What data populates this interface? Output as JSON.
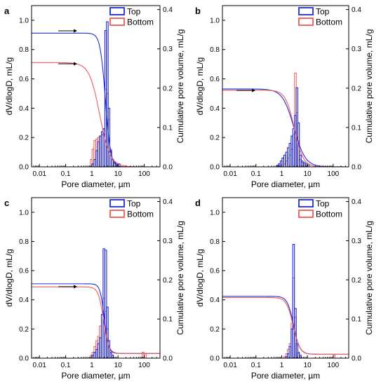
{
  "colors": {
    "top": "#1f2bd6",
    "bottom": "#ef5a5a"
  },
  "shared": {
    "xlabel": "Pore diameter, µm",
    "ylabel_left": "dV/dlogD, mL/g",
    "ylabel_right": "Cumulative pore volume, mL/g",
    "legend": [
      "Top",
      "Bottom"
    ],
    "x_ticks": [
      "0.01",
      "0.1",
      "1",
      "10",
      "100"
    ],
    "y_left_ticks": [
      "0.0",
      "0.2",
      "0.4",
      "0.6",
      "0.8",
      "1.0"
    ],
    "y_right_ticks": [
      "0.0",
      "0.1",
      "0.2",
      "0.3",
      "0.4"
    ]
  },
  "chart_data": [
    {
      "panel": "a",
      "type": "bar",
      "x_scale": "log",
      "xlim": [
        0.005,
        400
      ],
      "ylim": [
        0,
        1.1
      ],
      "y2lim": [
        0,
        0.41
      ],
      "x_label": "Pore diameter, µm",
      "y_label": "dV/dlogD, mL/g",
      "y2_label": "Cumulative pore volume, mL/g",
      "legend": "top-right",
      "series": [
        {
          "name": "Top",
          "bars": [
            [
              1.1,
              0.02
            ],
            [
              1.3,
              0.05
            ],
            [
              1.55,
              0.11
            ],
            [
              1.8,
              0.17
            ],
            [
              2.1,
              0.21
            ],
            [
              2.5,
              0.24
            ],
            [
              2.9,
              0.26
            ],
            [
              3.4,
              0.93
            ],
            [
              3.9,
              0.99
            ],
            [
              4.5,
              0.4
            ],
            [
              5.3,
              0.11
            ],
            [
              6.2,
              0.05
            ],
            [
              7.5,
              0.03
            ],
            [
              9,
              0.02
            ],
            [
              11,
              0.02
            ]
          ],
          "cumulative": {
            "plateau": 0.34,
            "end": 0.0,
            "d50": 3.3,
            "width": 0.1
          }
        },
        {
          "name": "Bottom",
          "bars": [
            [
              0.95,
              0.05
            ],
            [
              1.1,
              0.12
            ],
            [
              1.3,
              0.18
            ],
            [
              1.55,
              0.19
            ],
            [
              1.8,
              0.2
            ],
            [
              2.1,
              0.21
            ],
            [
              2.5,
              0.22
            ],
            [
              2.9,
              0.25
            ],
            [
              3.4,
              0.53
            ],
            [
              3.9,
              0.5
            ],
            [
              4.5,
              0.32
            ],
            [
              5.3,
              0.12
            ],
            [
              6.2,
              0.05
            ],
            [
              7.5,
              0.03
            ],
            [
              9,
              0.02
            ]
          ],
          "cumulative": {
            "plateau": 0.265,
            "end": 0.0,
            "d50": 2.0,
            "width": 0.2
          }
        }
      ]
    },
    {
      "panel": "b",
      "type": "bar",
      "x_scale": "log",
      "xlim": [
        0.005,
        400
      ],
      "ylim": [
        0,
        1.1
      ],
      "y2lim": [
        0,
        0.41
      ],
      "x_label": "Pore diameter, µm",
      "y_label": "dV/dlogD, mL/g",
      "y2_label": "Cumulative pore volume, mL/g",
      "legend": "top-right",
      "series": [
        {
          "name": "Top",
          "bars": [
            [
              0.7,
              0.01
            ],
            [
              0.8,
              0.02
            ],
            [
              0.95,
              0.04
            ],
            [
              1.1,
              0.06
            ],
            [
              1.3,
              0.08
            ],
            [
              1.55,
              0.1
            ],
            [
              1.8,
              0.13
            ],
            [
              2.1,
              0.16
            ],
            [
              2.5,
              0.21
            ],
            [
              2.9,
              0.26
            ],
            [
              3.4,
              0.35
            ],
            [
              3.9,
              0.54
            ],
            [
              4.5,
              0.3
            ],
            [
              5.3,
              0.08
            ],
            [
              6.2,
              0.04
            ],
            [
              7.5,
              0.03
            ],
            [
              9,
              0.02
            ],
            [
              11,
              0.01
            ]
          ],
          "cumulative": {
            "plateau": 0.198,
            "end": 0.0,
            "d50": 3.0,
            "width": 0.22
          }
        },
        {
          "name": "Bottom",
          "bars": [
            [
              1.3,
              0.02
            ],
            [
              1.55,
              0.04
            ],
            [
              1.8,
              0.06
            ],
            [
              2.1,
              0.08
            ],
            [
              2.5,
              0.12
            ],
            [
              2.9,
              0.22
            ],
            [
              3.4,
              0.64
            ],
            [
              3.9,
              0.37
            ],
            [
              4.5,
              0.18
            ],
            [
              5.3,
              0.05
            ],
            [
              6.2,
              0.03
            ],
            [
              7.5,
              0.02
            ]
          ],
          "cumulative": {
            "plateau": 0.195,
            "end": 0.0,
            "d50": 3.1,
            "width": 0.17
          }
        }
      ]
    },
    {
      "panel": "c",
      "type": "bar",
      "x_scale": "log",
      "xlim": [
        0.005,
        400
      ],
      "ylim": [
        0,
        1.1
      ],
      "y2lim": [
        0,
        0.41
      ],
      "x_label": "Pore diameter, µm",
      "y_label": "dV/dlogD, mL/g",
      "y2_label": "Cumulative pore volume, mL/g",
      "legend": "top-right",
      "series": [
        {
          "name": "Top",
          "bars": [
            [
              1.1,
              0.02
            ],
            [
              1.3,
              0.04
            ],
            [
              1.55,
              0.06
            ],
            [
              1.8,
              0.1
            ],
            [
              2.1,
              0.14
            ],
            [
              2.5,
              0.3
            ],
            [
              2.9,
              0.75
            ],
            [
              3.4,
              0.74
            ],
            [
              3.9,
              0.35
            ],
            [
              4.5,
              0.12
            ],
            [
              5.3,
              0.04
            ],
            [
              6.2,
              0.02
            ]
          ],
          "cumulative": {
            "plateau": 0.19,
            "end": 0.012,
            "d50": 3.0,
            "width": 0.08
          }
        },
        {
          "name": "Bottom",
          "bars": [
            [
              0.95,
              0.02
            ],
            [
              1.1,
              0.04
            ],
            [
              1.3,
              0.08
            ],
            [
              1.55,
              0.12
            ],
            [
              1.8,
              0.15
            ],
            [
              2.1,
              0.22
            ],
            [
              2.5,
              0.3
            ],
            [
              2.9,
              0.41
            ],
            [
              3.4,
              0.32
            ],
            [
              3.9,
              0.2
            ],
            [
              4.5,
              0.08
            ],
            [
              5.3,
              0.03
            ],
            [
              6.2,
              0.02
            ],
            [
              90,
              0.04
            ],
            [
              110,
              0.03
            ]
          ],
          "cumulative": {
            "plateau": 0.182,
            "end": 0.012,
            "d50": 2.8,
            "width": 0.1
          }
        }
      ]
    },
    {
      "panel": "d",
      "type": "bar",
      "x_scale": "log",
      "xlim": [
        0.005,
        400
      ],
      "ylim": [
        0,
        1.1
      ],
      "y2lim": [
        0,
        0.41
      ],
      "x_label": "Pore diameter, µm",
      "y_label": "dV/dlogD, mL/g",
      "y2_label": "Cumulative pore volume, mL/g",
      "legend": "top-right",
      "series": [
        {
          "name": "Top",
          "bars": [
            [
              1.55,
              0.01
            ],
            [
              1.8,
              0.03
            ],
            [
              2.1,
              0.08
            ],
            [
              2.5,
              0.2
            ],
            [
              2.9,
              0.78
            ],
            [
              3.4,
              0.34
            ],
            [
              3.9,
              0.1
            ],
            [
              4.5,
              0.04
            ],
            [
              5.3,
              0.02
            ]
          ],
          "cumulative": {
            "plateau": 0.158,
            "end": 0.01,
            "d50": 2.9,
            "width": 0.12
          }
        },
        {
          "name": "Bottom",
          "bars": [
            [
              1.3,
              0.01
            ],
            [
              1.55,
              0.03
            ],
            [
              1.8,
              0.06
            ],
            [
              2.1,
              0.1
            ],
            [
              2.5,
              0.24
            ],
            [
              2.9,
              0.55
            ],
            [
              3.4,
              0.28
            ],
            [
              3.9,
              0.09
            ],
            [
              4.5,
              0.03
            ],
            [
              5.3,
              0.01
            ],
            [
              110,
              0.02
            ]
          ],
          "cumulative": {
            "plateau": 0.155,
            "end": 0.01,
            "d50": 2.8,
            "width": 0.13
          }
        }
      ]
    }
  ]
}
